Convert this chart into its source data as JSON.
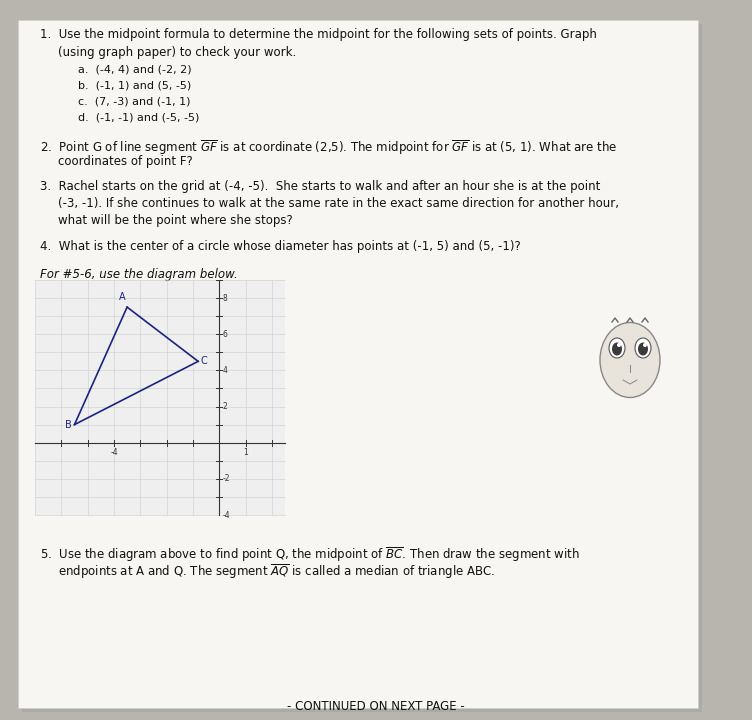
{
  "background_color": "#b8b4ae",
  "paper_color": "#f8f6f2",
  "triangle_color": "#1a237e",
  "label_color": "#1a237e",
  "font_size_body": 8.5,
  "font_size_small": 8.0,
  "font_size_italic": 8.5,
  "line_width": 1.2,
  "triangle": {
    "A": [
      -3.5,
      7.5
    ],
    "B": [
      -5.5,
      1.0
    ],
    "C": [
      -0.8,
      4.5
    ]
  },
  "graph_xlim": [
    -7,
    2.5
  ],
  "graph_ylim": [
    -4,
    9
  ],
  "x_label_neg4": -4,
  "x_label_1": 1,
  "y_label_8": 8,
  "y_label_6": 6,
  "y_label_4": 4,
  "y_label_2": 2,
  "y_label_neg2": -2,
  "y_label_neg4": -4,
  "continued_text": "- CONTINUED ON NEXT PAGE -"
}
